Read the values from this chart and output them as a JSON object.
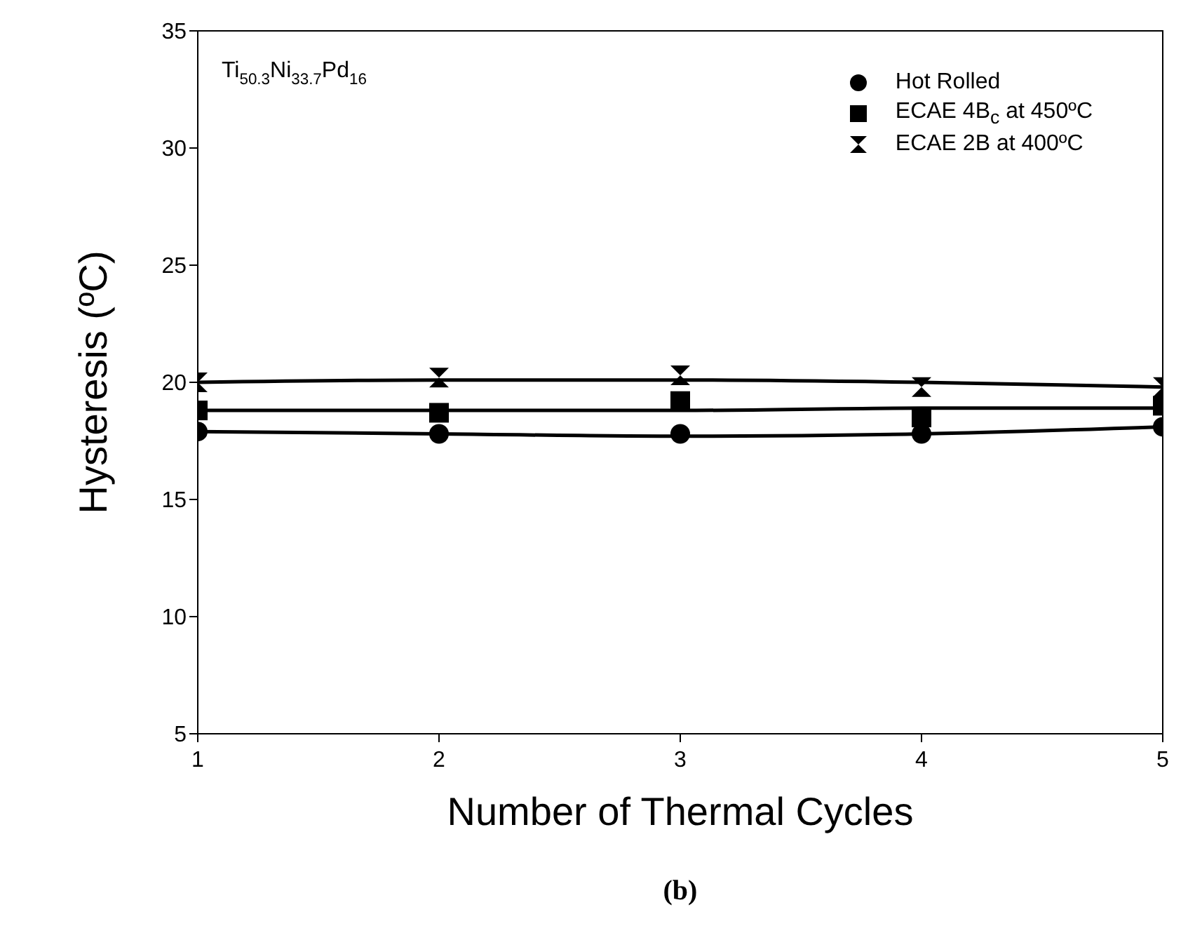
{
  "chart_data": {
    "type": "scatter",
    "xlabel": "Number of Thermal Cycles",
    "ylabel": "Hysteresis (ºC)",
    "x": [
      1,
      2,
      3,
      4,
      5
    ],
    "xlim": [
      1,
      5
    ],
    "xticks": [
      1,
      2,
      3,
      4,
      5
    ],
    "ylim": [
      5,
      35
    ],
    "yticks": [
      5,
      10,
      15,
      20,
      25,
      30,
      35
    ],
    "grid": false,
    "legend": "top right",
    "annotations": [
      "Ti$_{50.3}$Ni$_{33.7}$Pd$_{16}$",
      "(b)"
    ],
    "series": [
      {
        "name": "Hot Rolled",
        "color": "#000000",
        "marker": "circle",
        "values": [
          17.9,
          17.8,
          17.8,
          17.8,
          18.1
        ]
      },
      {
        "name": "ECAE 4B$_{c}$ at 450ºC",
        "color": "#000000",
        "marker": "square",
        "values": [
          18.8,
          18.7,
          19.2,
          18.5,
          19.0
        ]
      },
      {
        "name": "ECAE 2B at 400ºC",
        "color": "#000000",
        "marker": "triangle",
        "values": [
          20.0,
          20.2,
          20.3,
          19.8,
          19.8
        ]
      },
      {
        "type": "line",
        "color": "#000000",
        "marker": "none",
        "line_style": "solid",
        "x": [
          1,
          2,
          3,
          4,
          5
        ],
        "values": [
          17.9,
          17.8,
          17.7,
          17.8,
          18.1
        ]
      },
      {
        "type": "line",
        "color": "#000000",
        "marker": "none",
        "line_style": "solid",
        "x": [
          1,
          2,
          3,
          4,
          5
        ],
        "values": [
          18.8,
          18.8,
          18.8,
          18.9,
          18.9
        ]
      },
      {
        "type": "line",
        "color": "#000000",
        "marker": "none",
        "line_style": "solid",
        "x": [
          1,
          2,
          3,
          4,
          5
        ],
        "values": [
          20.0,
          20.1,
          20.1,
          20.0,
          19.8
        ]
      }
    ]
  }
}
